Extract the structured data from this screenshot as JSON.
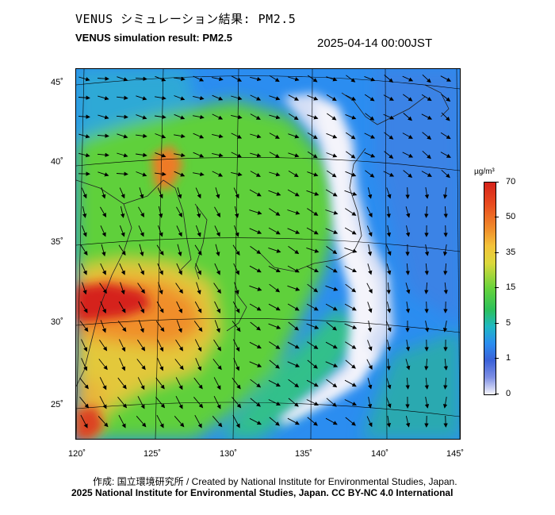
{
  "header": {
    "title_jp": "VENUS シミュレーション結果: PM2.5",
    "title_en": "VENUS simulation result: PM2.5",
    "timestamp": "2025-04-14 00:00JST"
  },
  "map": {
    "region": "East Asia / Japan",
    "variable": "PM2.5 concentration with wind vectors",
    "lat_labels": [
      "45˚",
      "40˚",
      "35˚",
      "30˚",
      "25˚"
    ],
    "lon_labels": [
      "120˚",
      "125˚",
      "130˚",
      "135˚",
      "140˚",
      "145˚"
    ],
    "colors": {
      "very_high": "#d5231b",
      "high": "#f08e2b",
      "moderate": "#66d33c",
      "low": "#2cc05a",
      "clean": "#2b8df0",
      "very_clean": "#f4f4fb"
    }
  },
  "colorbar": {
    "unit": "µg/m³",
    "labels": [
      "70",
      "50",
      "35",
      "15",
      "5",
      "1",
      "0"
    ]
  },
  "footer": {
    "credit_line_1": "作成: 国立環境研究所 / Created by National Institute for Environmental Studies, Japan.",
    "credit_line_2": "2025 National Institute for Environmental Studies, Japan. CC BY-NC 4.0 International"
  }
}
